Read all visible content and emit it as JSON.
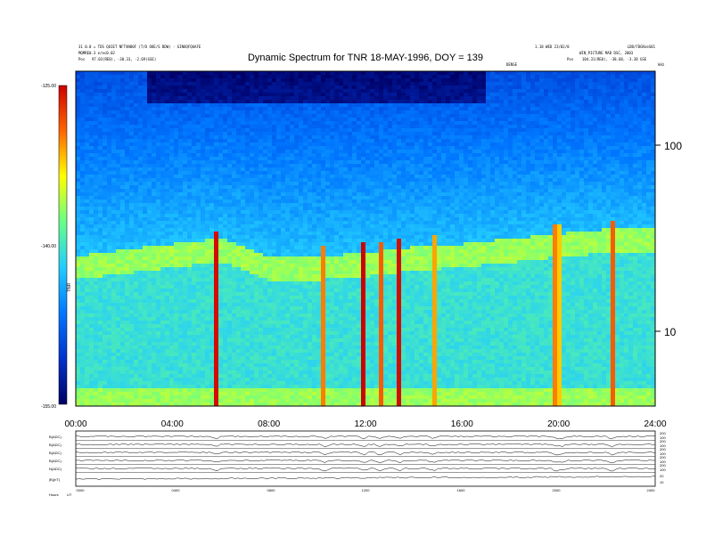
{
  "chart_data": {
    "type": "heatmap",
    "title": "Dynamic Spectrum for TNR 18-MAY-1996, DOY = 139",
    "header": {
      "left_line1": "31 0.0 = TDS QUIET NFTXN80F (T/D OOE/S BDW) - GINOQFQUAFE",
      "left_line2": "MQMRE0.3 e/ec0.02",
      "left_pos_label": "Pos",
      "left_pos_values": "97.03(RE0), -30.33, -2.69(GSE)",
      "right_line1": "1.18 WED 23/02/0",
      "right_line2": "LDB/FDGRoeS01",
      "right_line3": "WIN_PICTURE MAD DSC, 2003",
      "right_pos_label": "Pos",
      "right_pos_values": "104.31(RE0), -38.68, -3.38 GSE",
      "mid_label": "DENSE",
      "unit_label": "kHz"
    },
    "x_axis": {
      "ticks": [
        "00:00",
        "04:00",
        "08:00",
        "12:00",
        "16:00",
        "20:00",
        "24:00"
      ],
      "range": [
        0,
        24
      ]
    },
    "y_axis": {
      "scale": "log",
      "unit": "kHz",
      "ticks": [
        {
          "value": 100,
          "label": "100"
        },
        {
          "value": 10,
          "label": "10"
        }
      ],
      "range": [
        4,
        300
      ]
    },
    "colorbar": {
      "ticks": [
        "-125.00",
        "-140.00",
        "-155.00"
      ],
      "label": "TNR",
      "range": [
        -155,
        -125
      ]
    },
    "colormap": [
      "#000066",
      "#0033cc",
      "#0077ff",
      "#22ccff",
      "#66ff88",
      "#ffff00",
      "#ff6600",
      "#cc0000"
    ],
    "bursts_hours": [
      5.8,
      10.3,
      11.9,
      12.6,
      13.4,
      14.8,
      19.9,
      20.1,
      22.2
    ],
    "plasma_line_khz": [
      [
        0,
        24
      ],
      [
        4,
        28
      ],
      [
        6,
        30
      ],
      [
        8,
        24
      ],
      [
        10,
        24
      ],
      [
        12,
        25
      ],
      [
        14,
        27
      ],
      [
        16,
        28
      ],
      [
        18,
        30
      ],
      [
        20,
        32
      ],
      [
        22,
        34
      ],
      [
        24,
        34
      ]
    ],
    "panels": [
      {
        "label": "B(ADC)",
        "right_ticks": [
          "200",
          "100"
        ]
      },
      {
        "label": "B(ADC)",
        "right_ticks": [
          "200",
          "100"
        ]
      },
      {
        "label": "B(ADC)",
        "right_ticks": [
          "200",
          "100"
        ]
      },
      {
        "label": "B(ADC)",
        "right_ticks": [
          "200",
          "100"
        ]
      },
      {
        "label": "N(ADC)",
        "right_ticks": [
          "200",
          "100"
        ]
      },
      {
        "label": "|B|(nT)",
        "right_ticks": [
          "20",
          "10"
        ]
      }
    ],
    "bottom_axis": {
      "ticks": [
        "0000",
        "0400",
        "0800",
        "1200",
        "1600",
        "2000",
        "2400"
      ],
      "label": "Hours",
      "label_unit": "UT"
    }
  }
}
